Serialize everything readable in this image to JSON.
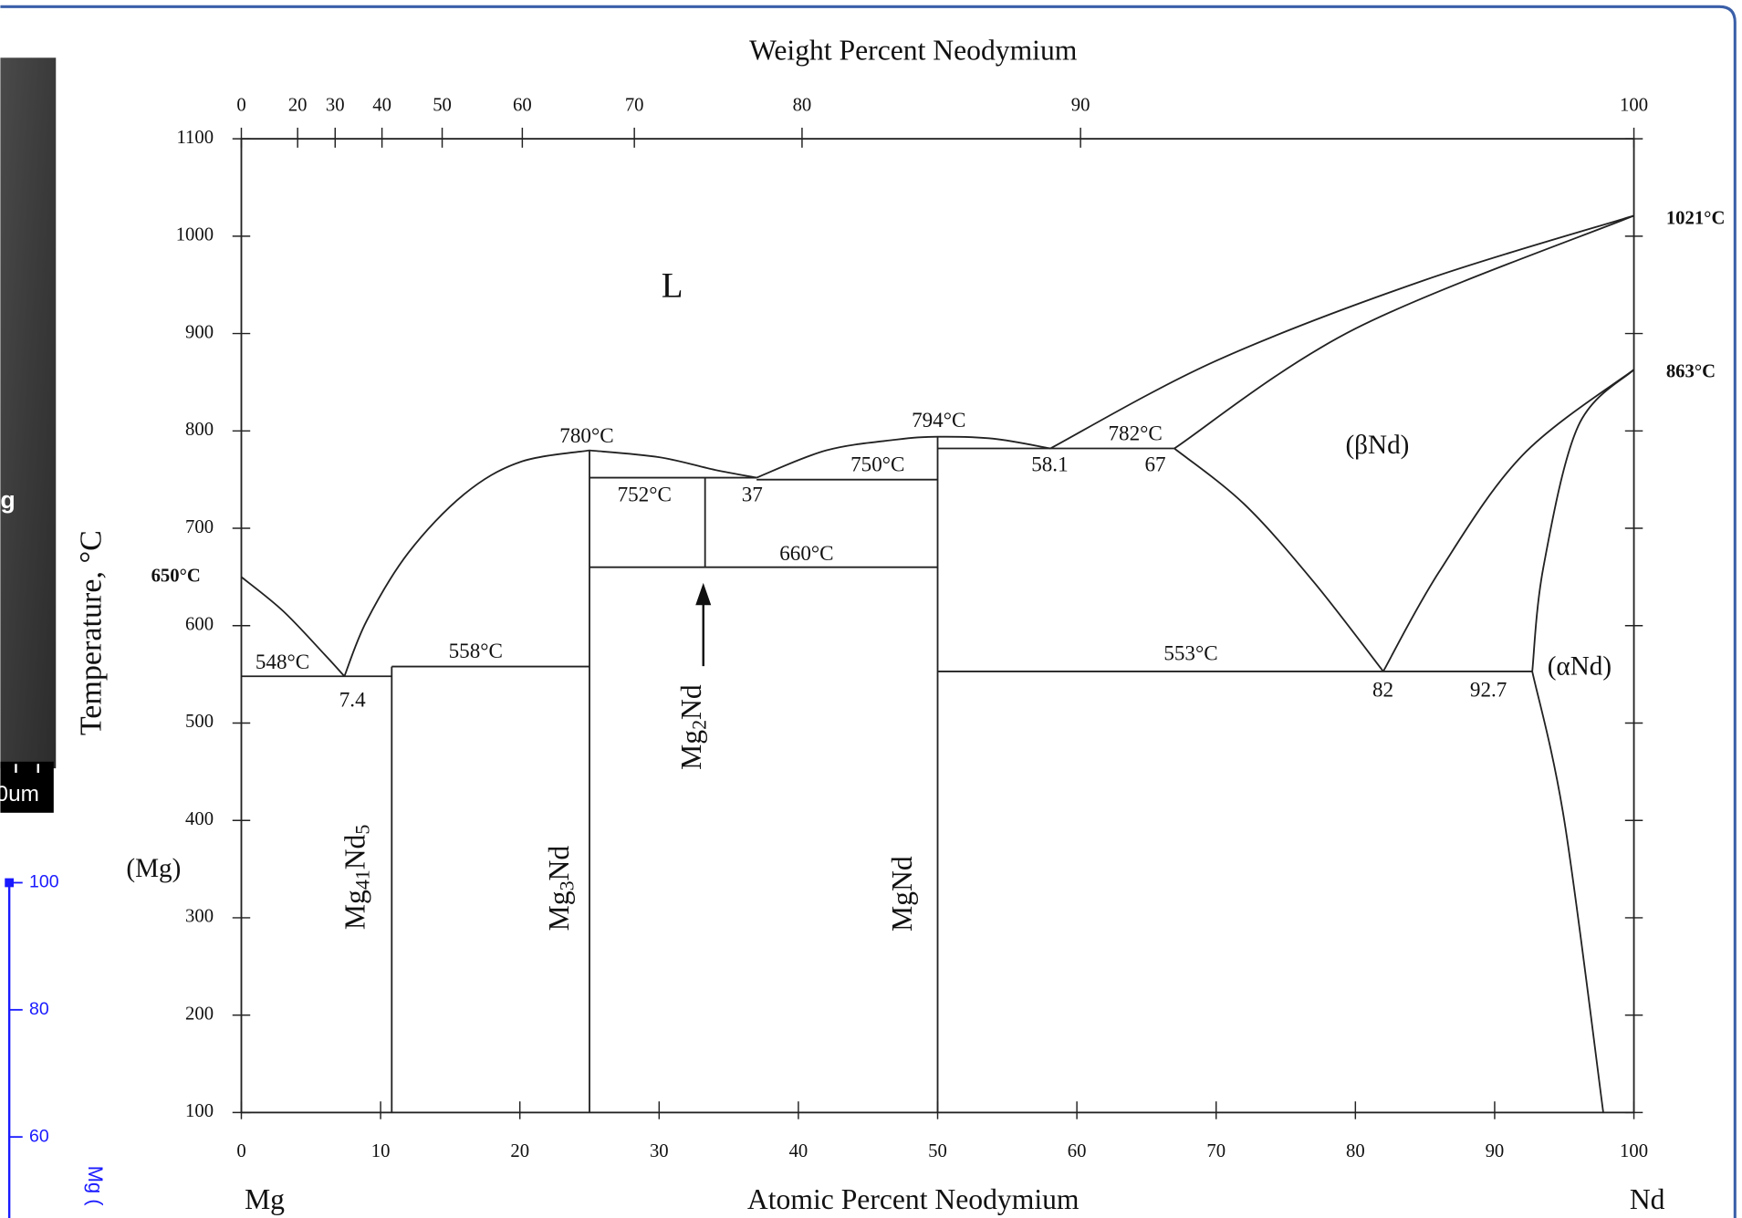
{
  "chart_data": {
    "type": "line",
    "x2label": "Weight Percent Neodymium",
    "xlabel": "Atomic Percent Neodymium",
    "ylabel": "Temperature, °C",
    "xlim": [
      0,
      100
    ],
    "ylim": [
      100,
      1100
    ],
    "xticks": [
      0,
      10,
      20,
      30,
      40,
      50,
      60,
      70,
      80,
      90,
      100
    ],
    "yticks": [
      100,
      200,
      300,
      400,
      500,
      600,
      700,
      800,
      900,
      1000,
      1100
    ],
    "x2ticks": [
      0,
      20,
      30,
      40,
      50,
      60,
      70,
      80,
      90,
      100
    ],
    "series": [
      {
        "color": "#222222",
        "x": [
          0,
          3,
          6,
          7.4
        ],
        "values": [
          650,
          615,
          570,
          548
        ]
      },
      {
        "color": "#222222",
        "x": [
          7.4,
          9,
          12,
          16,
          20,
          25
        ],
        "values": [
          548,
          605,
          675,
          735,
          768,
          780
        ]
      },
      {
        "color": "#222222",
        "x": [
          25,
          30,
          34,
          37
        ],
        "values": [
          780,
          773,
          760,
          752
        ]
      },
      {
        "color": "#222222",
        "x": [
          37,
          42,
          47,
          50,
          54,
          58.1
        ],
        "values": [
          752,
          780,
          791,
          794,
          792,
          782
        ]
      },
      {
        "color": "#222222",
        "x": [
          58.1,
          70,
          85,
          100
        ],
        "values": [
          782,
          872,
          955,
          1021
        ]
      },
      {
        "color": "#222222",
        "x": [
          67,
          80,
          100
        ],
        "values": [
          782,
          905,
          1021
        ]
      },
      {
        "color": "#222222",
        "x": [
          67,
          72,
          77,
          82
        ],
        "values": [
          782,
          725,
          645,
          553
        ]
      },
      {
        "color": "#222222",
        "x": [
          82,
          86,
          92,
          100
        ],
        "values": [
          553,
          655,
          775,
          863
        ]
      },
      {
        "color": "#222222",
        "x": [
          100,
          96,
          93.5,
          92.7
        ],
        "values": [
          863,
          805,
          660,
          553
        ]
      },
      {
        "color": "#222222",
        "x": [
          92.7,
          95,
          97.8
        ],
        "values": [
          553,
          400,
          100
        ]
      },
      {
        "color": "#222222",
        "x": [
          0,
          10.8
        ],
        "values": [
          548,
          548
        ]
      },
      {
        "color": "#222222",
        "x": [
          10.8,
          25
        ],
        "values": [
          558,
          558
        ]
      },
      {
        "color": "#222222",
        "x": [
          25,
          37
        ],
        "values": [
          752,
          752
        ]
      },
      {
        "color": "#222222",
        "x": [
          37,
          50
        ],
        "values": [
          750,
          750
        ]
      },
      {
        "color": "#222222",
        "x": [
          25,
          50
        ],
        "values": [
          660,
          660
        ]
      },
      {
        "color": "#222222",
        "x": [
          50,
          67
        ],
        "values": [
          782,
          782
        ]
      },
      {
        "color": "#222222",
        "x": [
          50,
          92.7
        ],
        "values": [
          553,
          553
        ]
      },
      {
        "color": "#222222",
        "x": [
          10.8,
          10.8
        ],
        "values": [
          558,
          100
        ]
      },
      {
        "color": "#222222",
        "x": [
          25,
          25
        ],
        "values": [
          780,
          100
        ]
      },
      {
        "color": "#222222",
        "x": [
          33.3,
          33.3
        ],
        "values": [
          752,
          660
        ]
      },
      {
        "color": "#222222",
        "x": [
          50,
          50
        ],
        "values": [
          794,
          100
        ]
      }
    ],
    "annotations": [
      "780°C",
      "794°C",
      "752°C",
      "37",
      "750°C",
      "660°C",
      "58.1",
      "67",
      "782°C",
      "548°C",
      "7.4",
      "558°C",
      "553°C",
      "82",
      "92.7",
      "650°C",
      "1021°C",
      "863°C",
      "L",
      "(βNd)",
      "(αNd)",
      "(Mg)",
      "Mg",
      "Nd"
    ],
    "compounds": [
      [
        "Mg",
        "41",
        "Nd",
        "5"
      ],
      [
        "Mg",
        "3",
        "Nd"
      ],
      [
        "Mg",
        "2",
        "Nd"
      ],
      [
        "MgNd"
      ]
    ]
  },
  "side_panel": {
    "label": "g",
    "scale_label": "0um",
    "axis_label": "Mg (",
    "yticks": [
      100,
      80,
      60
    ],
    "color": "#1a1aff"
  }
}
